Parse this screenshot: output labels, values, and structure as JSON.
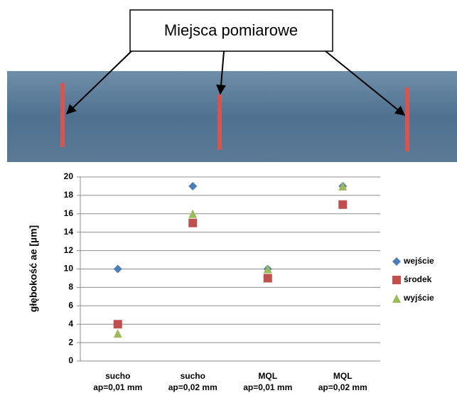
{
  "label": "Miejsca pomiarowe",
  "chart_data": {
    "type": "scatter",
    "y_label": "głębokość ae [µm]",
    "categories": [
      "sucho",
      "sucho",
      "MQL",
      "MQL"
    ],
    "subcategories": [
      "ap=0,01 mm",
      "ap=0,02 mm",
      "ap=0,01 mm",
      "ap=0,02 mm"
    ],
    "series": [
      {
        "name": "wejście",
        "color": "#4a7ebb",
        "marker": "diamond",
        "values": [
          10,
          19,
          10,
          19
        ]
      },
      {
        "name": "środek",
        "color": "#c0504d",
        "marker": "square",
        "values": [
          4,
          15,
          9,
          17
        ]
      },
      {
        "name": "wyjście",
        "color": "#9bbb59",
        "marker": "triangle",
        "values": [
          3,
          16,
          10,
          19
        ]
      }
    ],
    "ylim": [
      0,
      20
    ],
    "yticks": [
      0,
      2,
      4,
      6,
      8,
      10,
      12,
      14,
      16,
      18,
      20
    ],
    "grid": true,
    "legend": "right"
  }
}
